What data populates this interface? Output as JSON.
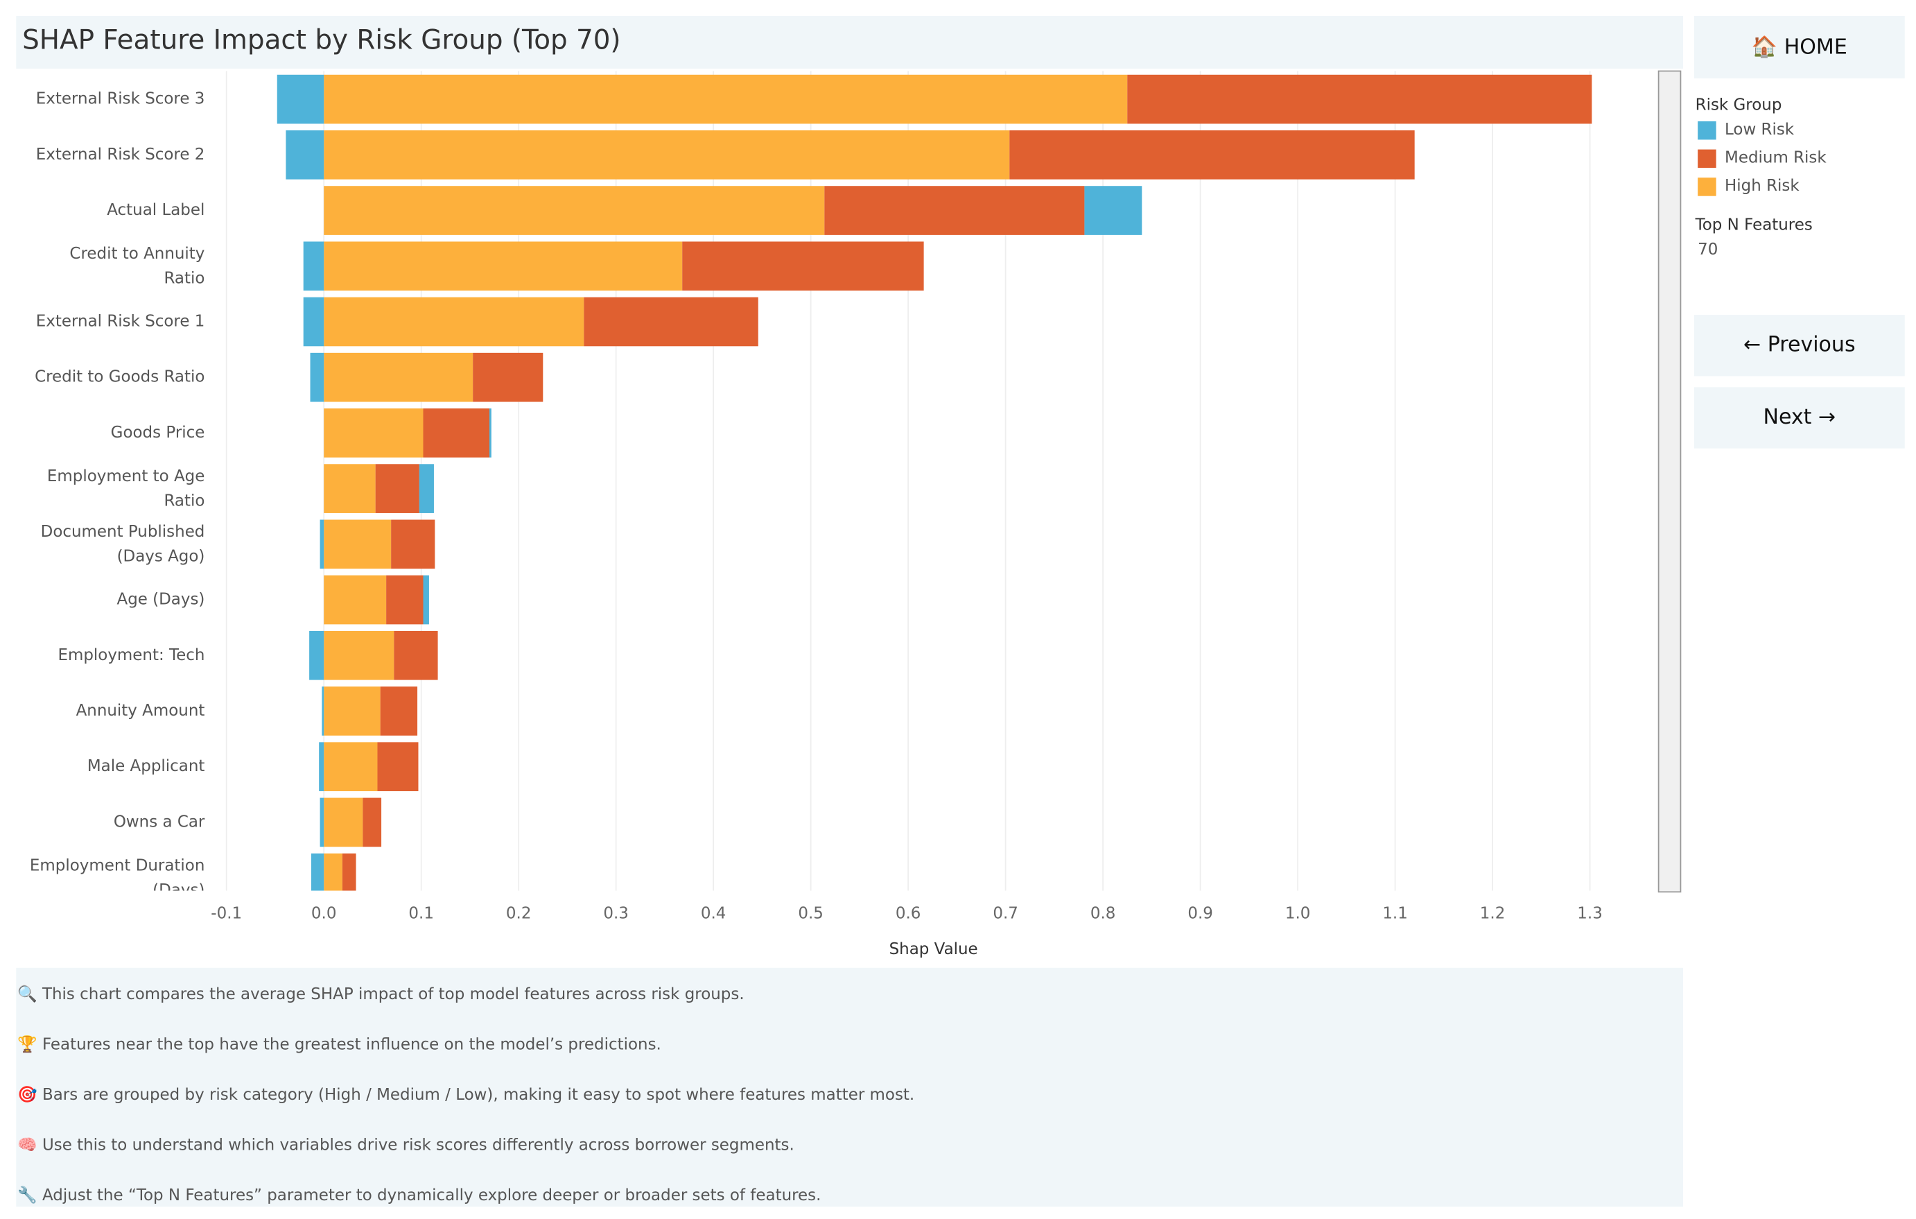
{
  "chart_data": {
    "type": "stacked-bar-horizontal",
    "title": "SHAP Feature Impact by Risk Group (Top 70)",
    "x_label": "Shap Value",
    "categories": [
      "External Risk Score 3",
      "External Risk Score 2",
      "Actual Label",
      "Credit to Annuity Ratio",
      "External Risk Score 1",
      "Credit to Goods Ratio",
      "Goods Price",
      "Employment to Age Ratio",
      "Document Published (Days Ago)",
      "Age (Days)",
      "Employment: Tech",
      "Annuity Amount",
      "Male Applicant",
      "Owns a Car",
      "Employment Duration (Days)"
    ],
    "series": [
      {
        "name": "Low Risk",
        "color": "#4fb3d9",
        "values": [
          -0.048,
          -0.039,
          0.059,
          -0.021,
          -0.021,
          -0.014,
          0.002,
          0.015,
          -0.004,
          0.006,
          -0.015,
          -0.002,
          -0.005,
          -0.004,
          -0.013
        ]
      },
      {
        "name": "Medium Risk",
        "color": "#e06030",
        "values": [
          0.477,
          0.416,
          0.267,
          0.248,
          0.179,
          0.072,
          0.068,
          0.045,
          0.045,
          0.038,
          0.045,
          0.038,
          0.042,
          0.019,
          0.014
        ]
      },
      {
        "name": "High Risk",
        "color": "#fdb03c",
        "values": [
          0.825,
          0.704,
          0.514,
          0.368,
          0.267,
          0.153,
          0.102,
          0.053,
          0.069,
          0.064,
          0.072,
          0.058,
          0.055,
          0.04,
          0.019
        ]
      }
    ],
    "xlim": [
      -0.116,
      1.368
    ],
    "xticks": [
      -0.1,
      {
        "value": 0,
        "label": "0.0"
      },
      0.1,
      0.2,
      0.3,
      0.4,
      0.5,
      0.6,
      0.7,
      0.8,
      0.9,
      {
        "value": 1,
        "label": "1.0"
      },
      1.1,
      1.2,
      1.3
    ],
    "grid": true,
    "legend_title": "Risk Group"
  },
  "sidebar": {
    "home": "🏠 HOME",
    "parameter_title": "Top N Features",
    "parameter_value": "70",
    "previous": "← Previous",
    "next": "Next →"
  },
  "notes": [
    "🔍 This chart compares the average SHAP impact of top model features across risk groups.",
    "🏆 Features near the top have the greatest influence on the model’s predictions.",
    "🎯 Bars are grouped by risk category (High / Medium / Low), making it easy to spot where features matter most.",
    "🧠 Use this to understand which variables drive risk scores differently across borrower segments.",
    "🔧 Adjust the “Top N Features” parameter to dynamically explore deeper or broader sets of features."
  ]
}
